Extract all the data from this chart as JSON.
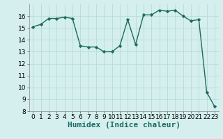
{
  "x": [
    0,
    1,
    2,
    3,
    4,
    5,
    6,
    7,
    8,
    9,
    10,
    11,
    12,
    13,
    14,
    15,
    16,
    17,
    18,
    19,
    20,
    21,
    22,
    23
  ],
  "y": [
    15.1,
    15.3,
    15.8,
    15.8,
    15.9,
    15.8,
    13.5,
    13.4,
    13.4,
    13.0,
    13.0,
    13.5,
    15.7,
    13.6,
    16.1,
    16.1,
    16.5,
    16.4,
    16.5,
    16.0,
    15.6,
    15.7,
    9.6,
    8.4
  ],
  "line_color": "#1a6b5e",
  "marker": "D",
  "marker_size": 2.2,
  "bg_color": "#d4efed",
  "grid_color": "#b8dbd8",
  "xlabel": "Humidex (Indice chaleur)",
  "ylim": [
    8,
    17
  ],
  "xlim": [
    -0.5,
    23.5
  ],
  "yticks": [
    8,
    9,
    10,
    11,
    12,
    13,
    14,
    15,
    16
  ],
  "xticks": [
    0,
    1,
    2,
    3,
    4,
    5,
    6,
    7,
    8,
    9,
    10,
    11,
    12,
    13,
    14,
    15,
    16,
    17,
    18,
    19,
    20,
    21,
    22,
    23
  ],
  "tick_fontsize": 6.5,
  "xlabel_fontsize": 8,
  "line_width": 1.0
}
